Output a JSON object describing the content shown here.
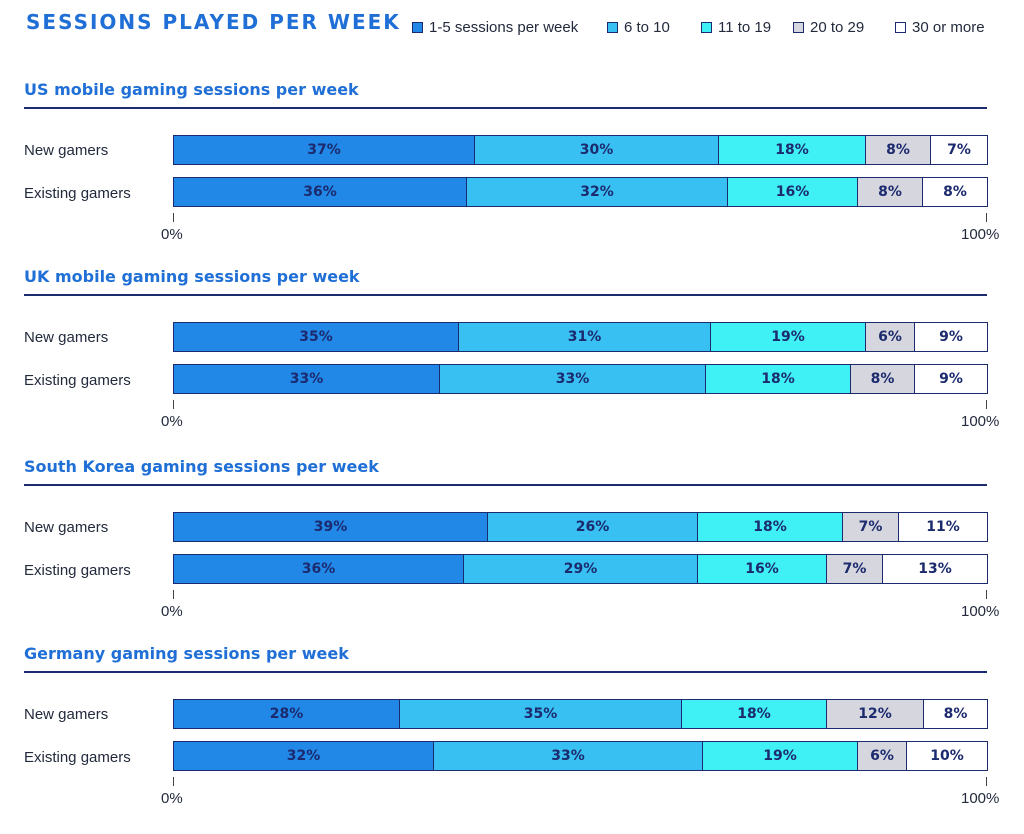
{
  "chart_data": {
    "type": "bar",
    "orientation": "horizontal-stacked-100",
    "title": "SESSIONS PLAYED PER WEEK",
    "legend_position": "top-right",
    "colors": [
      "#2188e8",
      "#38c0f2",
      "#3ff0f4",
      "#d6d6df",
      "#ffffff"
    ],
    "legend": [
      "1-5 sessions per week",
      "6 to 10",
      "11 to 19",
      "20 to 29",
      "30 or more"
    ],
    "axis": {
      "min_label": "0%",
      "max_label": "100%",
      "range": [
        0,
        100
      ]
    },
    "panels": [
      {
        "title": "US mobile gaming sessions per week",
        "rows": [
          {
            "label": "New gamers",
            "values": [
              37,
              30,
              18,
              8,
              7
            ],
            "labels": [
              "37%",
              "30%",
              "18%",
              "8%",
              "7%"
            ]
          },
          {
            "label": "Existing gamers",
            "values": [
              36,
              32,
              16,
              8,
              8
            ],
            "labels": [
              "36%",
              "32%",
              "16%",
              "8%",
              "8%"
            ]
          }
        ]
      },
      {
        "title": "UK mobile gaming sessions per week",
        "rows": [
          {
            "label": "New gamers",
            "values": [
              35,
              31,
              19,
              6,
              9
            ],
            "labels": [
              "35%",
              "31%",
              "19%",
              "6%",
              "9%"
            ]
          },
          {
            "label": "Existing gamers",
            "values": [
              33,
              33,
              18,
              8,
              9
            ],
            "labels": [
              "33%",
              "33%",
              "18%",
              "8%",
              "9%"
            ]
          }
        ]
      },
      {
        "title": "South Korea gaming sessions per week",
        "rows": [
          {
            "label": "New gamers",
            "values": [
              39,
              26,
              18,
              7,
              11
            ],
            "labels": [
              "39%",
              "26%",
              "18%",
              "7%",
              "11%"
            ]
          },
          {
            "label": "Existing gamers",
            "values": [
              36,
              29,
              16,
              7,
              13
            ],
            "labels": [
              "36%",
              "29%",
              "16%",
              "7%",
              "13%"
            ]
          }
        ]
      },
      {
        "title": "Germany gaming sessions per week",
        "rows": [
          {
            "label": "New gamers",
            "values": [
              28,
              35,
              18,
              12,
              8
            ],
            "labels": [
              "28%",
              "35%",
              "18%",
              "12%",
              "8%"
            ]
          },
          {
            "label": "Existing gamers",
            "values": [
              32,
              33,
              19,
              6,
              10
            ],
            "labels": [
              "32%",
              "33%",
              "19%",
              "6%",
              "10%"
            ]
          }
        ]
      }
    ]
  }
}
